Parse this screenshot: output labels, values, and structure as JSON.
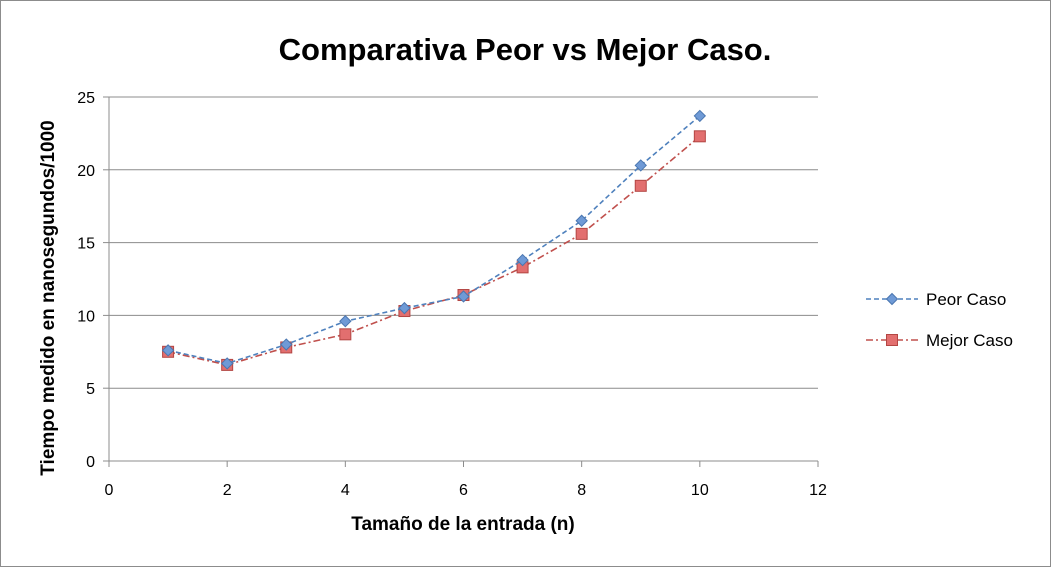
{
  "chart_data": {
    "type": "line",
    "title": "Comparativa Peor vs Mejor Caso.",
    "xlabel": "Tamaño de la entrada (n)",
    "ylabel": "Tiempo medido en nanosegundos/1000",
    "xlim": [
      0,
      12
    ],
    "ylim": [
      0,
      25
    ],
    "xticks": [
      "0",
      "2",
      "4",
      "6",
      "8",
      "10",
      "12"
    ],
    "yticks": [
      "0",
      "5",
      "10",
      "15",
      "20",
      "25"
    ],
    "grid": "horizontal",
    "legend_position": "right",
    "series": [
      {
        "name": "Peor Caso",
        "color": "#4f81bd",
        "marker": "diamond",
        "line_style": "dashed",
        "x": [
          1,
          2,
          3,
          4,
          5,
          6,
          7,
          8,
          9,
          10
        ],
        "y": [
          7.6,
          6.7,
          8.0,
          9.6,
          10.5,
          11.3,
          13.8,
          16.5,
          20.3,
          23.7
        ]
      },
      {
        "name": "Mejor Caso",
        "color": "#c0504d",
        "marker": "square",
        "line_style": "dash-dot",
        "x": [
          1,
          2,
          3,
          4,
          5,
          6,
          7,
          8,
          9,
          10
        ],
        "y": [
          7.5,
          6.6,
          7.8,
          8.7,
          10.3,
          11.4,
          13.3,
          15.6,
          18.9,
          22.3
        ]
      }
    ]
  }
}
